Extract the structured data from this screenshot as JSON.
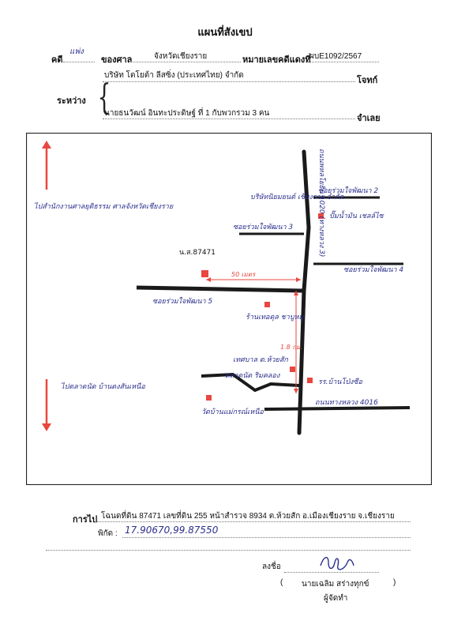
{
  "title": "แผนที่สังเขป",
  "case_row": {
    "case_label": "คดี",
    "case_type": "แพ่ง",
    "court_label": "ของศาล",
    "court": "จังหวัดเชียงราย",
    "black_no_label": "หมายเลขคดีแดงที่",
    "black_no": "ผบE1092/2567"
  },
  "parties": {
    "between_label": "ระหว่าง",
    "plaintiff": "บริษัท โตโยต้า ลีสซิ่ง (ประเทศไทย) จำกัด",
    "plaintiff_role": "โจทก์",
    "defendant": "นายธนวัฒน์ อินทะประดิษฐ์ ที่ 1 กับพวกรวม 3 คน",
    "defendant_role": "จำเลย"
  },
  "map": {
    "left_top_note": "ไปสำนักงานศาลยุติธรรม ศาลจังหวัดเชียงราย",
    "left_bottom_note": "ไปตลาดนัด บ้านดงสันเหนือ",
    "main_road": "ถนนพหลโยธิน 1020 (ทางหลวง 3)",
    "soi2": "ซอยร่วมใจพัฒนา 2",
    "soi3": "ซอยร่วมใจพัฒนา 3",
    "soi4": "ซอยร่วมใจพัฒนา 4",
    "soi5": "ซอยร่วมใจพัฒนา 5",
    "company": "บริษัทนิยมยนต์ เชียงราย จำกัด",
    "pump": "ปั๊มน้ำมัน เชลล์ไซ",
    "parcel": "น.ส.87471",
    "distance": "50 เมตร",
    "temple_shop": "ร้านเทอดุล ชาบูหมู",
    "mileage": "1.8 กม.",
    "subdistrict": "เทศบาล ต.ห้วยสัก",
    "market": "ตลาดนัด ริมคลอง",
    "school": "รร.บ้านโป่งซือ",
    "route": "ถนนทางหลวง 4016",
    "temple": "วัดบ้านแม่กรณ์เหนือ"
  },
  "footer": {
    "directions_label": "การไป",
    "directions": "โฉนดที่ดิน 87471 เลขที่ดิน 255 หน้าสำรวจ 8934 ต.ห้วยสัก อ.เมืองเชียงราย จ.เชียงราย",
    "coords_label": "พิกัด :",
    "coords": "17.90670,99.87550",
    "sign_label": "ลงชื่อ",
    "signer": "นายเฉลิม สร่างทุกข์",
    "signer_role": "ผู้จัดทำ",
    "paren_open": "(",
    "paren_close": ")"
  },
  "colors": {
    "road": "#1a1a1a",
    "marker": "#e8473f",
    "ink": "#2b2f8c"
  }
}
